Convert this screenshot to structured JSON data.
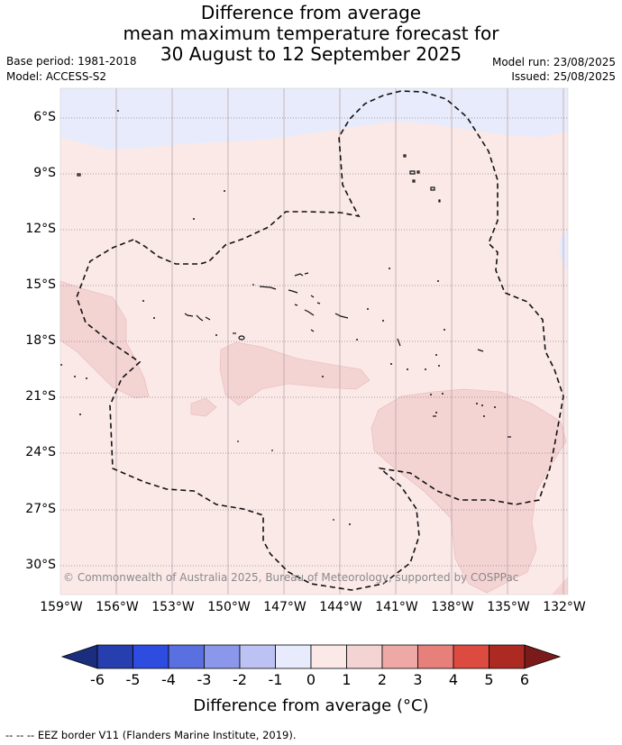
{
  "header": {
    "title_line1": "Difference from average",
    "title_line2": "mean maximum temperature forecast for",
    "title_line3": "30 August to 12 September 2025",
    "base_period": "Base period: 1981-2018",
    "model": "Model: ACCESS-S2",
    "model_run": "Model run: 23/08/2025",
    "issued": "Issued: 25/08/2025"
  },
  "map": {
    "lon_labels": [
      "159°W",
      "156°W",
      "153°W",
      "150°W",
      "147°W",
      "144°W",
      "141°W",
      "138°W",
      "135°W",
      "132°W"
    ],
    "lat_labels": [
      "6°S",
      "9°S",
      "12°S",
      "15°S",
      "18°S",
      "21°S",
      "24°S",
      "27°S",
      "30°S"
    ],
    "copyright": "© Commonwealth of Australia 2025, Bureau of Meteorology, supported by COSPPac",
    "colors": {
      "band_0_1": "#fbe9e8",
      "band_1_2": "#f4d3d3",
      "band_m1_0": "#e8ebfb"
    }
  },
  "colorbar": {
    "ticks": [
      "-6",
      "-5",
      "-4",
      "-3",
      "-2",
      "-1",
      "0",
      "1",
      "2",
      "3",
      "4",
      "5",
      "6"
    ],
    "colors": [
      "#273fae",
      "#2e4de0",
      "#5a6fe0",
      "#8a97ea",
      "#bcc3f4",
      "#e8ebfb",
      "#fbe9e8",
      "#f4d3d3",
      "#eea9a7",
      "#e7807a",
      "#dc4a40",
      "#ad2a22"
    ],
    "under_color": "#1b2e7e",
    "over_color": "#7b1a1a",
    "title": "Difference from average (°C)"
  },
  "footer": {
    "legend": "-- -- -- EEZ border V11 (Flanders Marine Institute, 2019)."
  }
}
